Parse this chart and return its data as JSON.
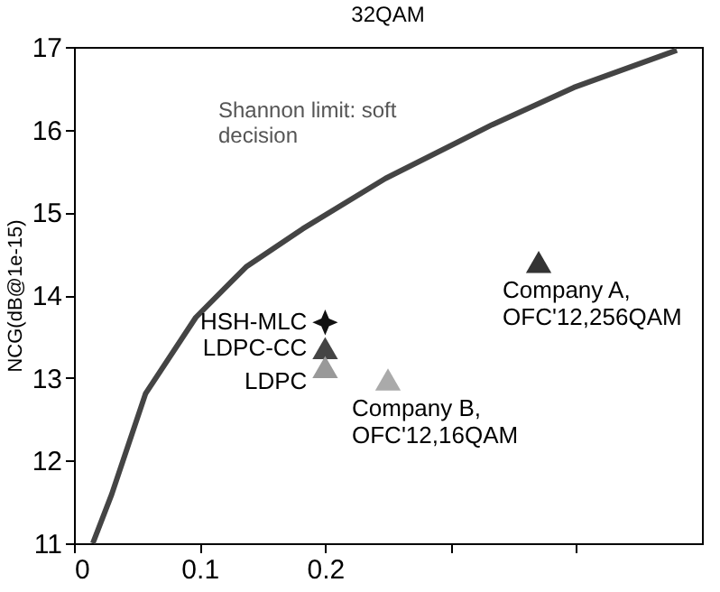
{
  "chart_data": {
    "type": "scatter",
    "title": "32QAM",
    "ylabel": "NCG(dB@1e-15)",
    "xlim": [
      0,
      0.5
    ],
    "xticks": [
      0,
      0.1,
      0.2,
      {
        "value": 0.3,
        "label": null
      },
      {
        "value": 0.4,
        "label": null
      }
    ],
    "ylim": [
      11,
      17
    ],
    "yticks": [
      11,
      12,
      13,
      14,
      15,
      16,
      17
    ],
    "grid": false,
    "legend": false,
    "series": [
      {
        "type": "line",
        "color": "#444444",
        "line_style": "solid",
        "marker": "none",
        "x": [
          0.015,
          0.03,
          0.057,
          0.097,
          0.137,
          0.182,
          0.248,
          0.333,
          0.398,
          0.48
        ],
        "values": [
          11,
          11.59,
          12.81,
          13.73,
          14.34,
          14.8,
          15.41,
          16.06,
          16.51,
          16.96
        ]
      },
      {
        "name": "HSH-MLC",
        "color": "#111111",
        "marker": "star",
        "x": [
          0.2
        ],
        "values": [
          13.67
        ]
      },
      {
        "name": "LDPC-CC",
        "color": "#444444",
        "marker": "triangle",
        "x": [
          0.2
        ],
        "values": [
          13.36
        ]
      },
      {
        "name": "LDPC",
        "color": "#999999",
        "marker": "triangle",
        "x": [
          0.2
        ],
        "values": [
          13.13
        ]
      },
      {
        "name": "Company B,\nOFC'12,16QAM",
        "color": "#aaaaaa",
        "marker": "triangle",
        "x": [
          0.25
        ],
        "values": [
          12.98
        ]
      },
      {
        "name": "Company A,\nOFC'12,256QAM",
        "color": "#333333",
        "marker": "triangle",
        "x": [
          0.37
        ],
        "values": [
          14.4
        ]
      }
    ],
    "annotations": [
      "Shannon limit: soft\ndecision"
    ]
  }
}
